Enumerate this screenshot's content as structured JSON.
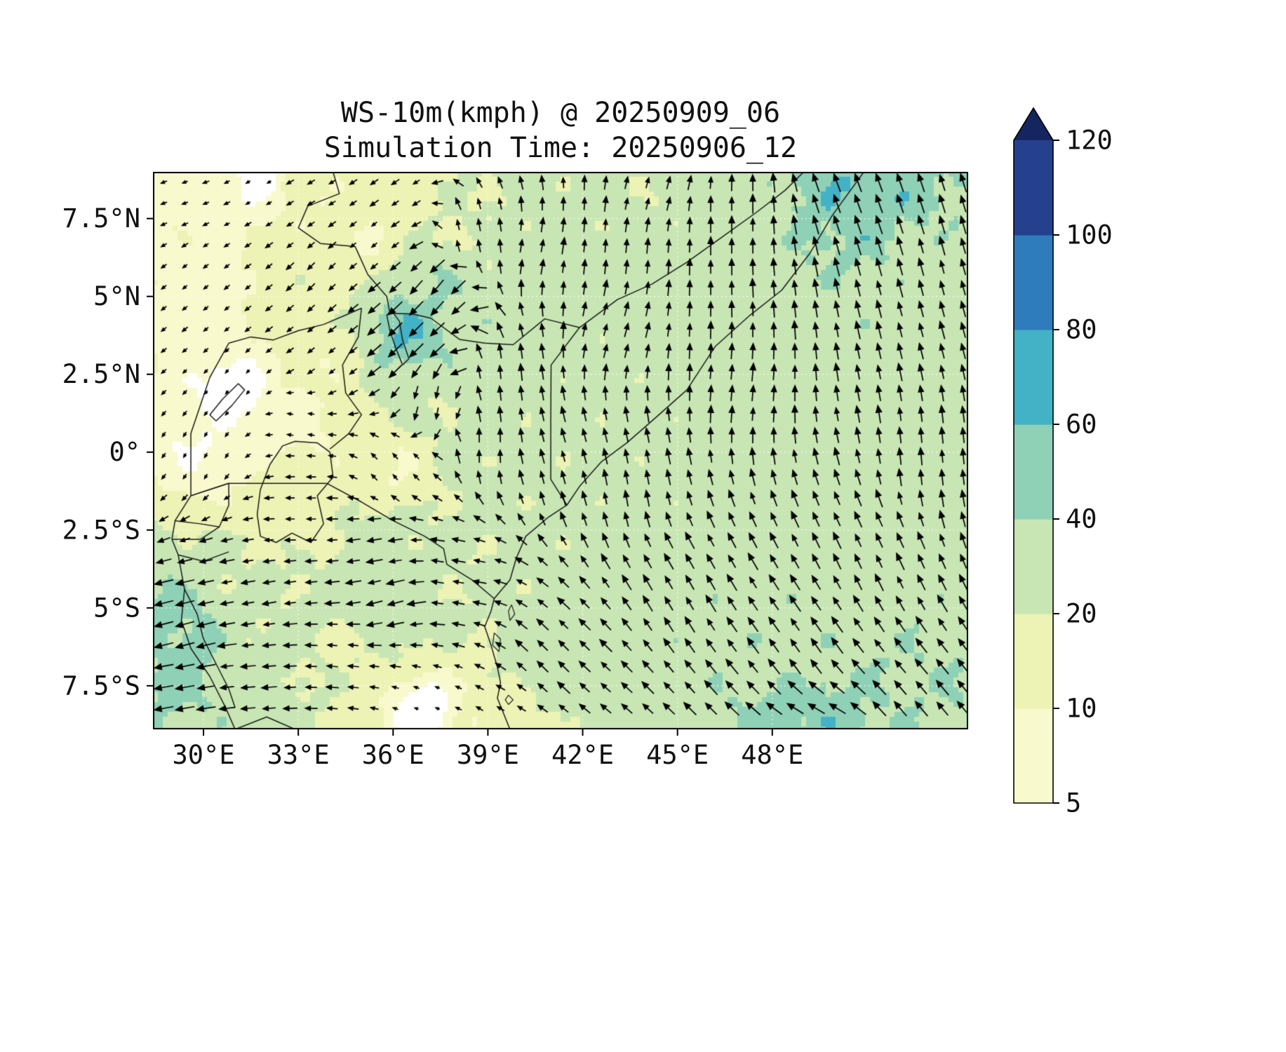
{
  "figure": {
    "title_line1": "WS-10m(kmph) @ 20250909_06",
    "title_line2": "Simulation Time: 20250906_12"
  },
  "chart_data": {
    "type": "heatmap",
    "subtype": "wind_speed_map_with_quiver",
    "title": "WS-10m(kmph) @ 20250909_06",
    "subtitle": "Simulation Time: 20250906_12",
    "variable": "10 m wind speed (kmph) shaded, with wind direction arrows",
    "grid": true,
    "extent": {
      "lon_min": 28.4,
      "lon_max": 54.2,
      "lat_min": -8.9,
      "lat_max": 9.0
    },
    "x_ticks": [
      {
        "label": "30°E",
        "lon": 30
      },
      {
        "label": "33°E",
        "lon": 33
      },
      {
        "label": "36°E",
        "lon": 36
      },
      {
        "label": "39°E",
        "lon": 39
      },
      {
        "label": "42°E",
        "lon": 42
      },
      {
        "label": "45°E",
        "lon": 45
      },
      {
        "label": "48°E",
        "lon": 48
      }
    ],
    "y_ticks": [
      {
        "label": "7.5°N",
        "lat": 7.5
      },
      {
        "label": "5°N",
        "lat": 5
      },
      {
        "label": "2.5°N",
        "lat": 2.5
      },
      {
        "label": "0°",
        "lat": 0
      },
      {
        "label": "2.5°S",
        "lat": -2.5
      },
      {
        "label": "5°S",
        "lat": -5
      },
      {
        "label": "7.5°S",
        "lat": -7.5
      }
    ],
    "colorbar": {
      "orientation": "vertical",
      "position": "right",
      "boundary_labels": [
        "5",
        "10",
        "20",
        "40",
        "60",
        "80",
        "100",
        "120"
      ],
      "thresholds": [
        5,
        10,
        20,
        40,
        60,
        80,
        100,
        120
      ],
      "under_color": "#ffffff",
      "band_colors": [
        "#f9f9ce",
        "#edf3b5",
        "#c8e6b4",
        "#8fd1b6",
        "#44b2c6",
        "#2e7cbc",
        "#25418e"
      ],
      "over_color": "#152560"
    },
    "quiver": {
      "spacing_px": 30,
      "arrow_color": "#000000"
    },
    "wind_field": {
      "units": "kmph",
      "point_format": [
        "lon",
        "lat",
        "speed_kmph",
        "dir_deg_toward"
      ],
      "points": [
        [
          29.5,
          8.5,
          8,
          250
        ],
        [
          31.8,
          8.8,
          4,
          240
        ],
        [
          33.2,
          8.6,
          12,
          240
        ],
        [
          36.0,
          8.2,
          14,
          235
        ],
        [
          30.0,
          5.2,
          7,
          230
        ],
        [
          33.5,
          5.5,
          16,
          225
        ],
        [
          35.2,
          6.7,
          10,
          230
        ],
        [
          38.5,
          7.0,
          20,
          350
        ],
        [
          30.0,
          0.0,
          5,
          210
        ],
        [
          31.0,
          2.0,
          3,
          220
        ],
        [
          33.0,
          1.0,
          8,
          280
        ],
        [
          34.0,
          3.0,
          12,
          230
        ],
        [
          36.5,
          3.8,
          58,
          225
        ],
        [
          37.3,
          5.2,
          40,
          220
        ],
        [
          37.3,
          1.5,
          22,
          190
        ],
        [
          39.5,
          2.5,
          28,
          355
        ],
        [
          39.0,
          0.3,
          26,
          0
        ],
        [
          36.0,
          -0.5,
          10,
          320
        ],
        [
          40.5,
          6.5,
          26,
          10
        ],
        [
          43.0,
          4.0,
          25,
          15
        ],
        [
          46.5,
          7.5,
          30,
          0
        ],
        [
          44.5,
          8.8,
          22,
          15
        ],
        [
          50.5,
          8.6,
          55,
          340
        ],
        [
          53.5,
          5.0,
          30,
          345
        ],
        [
          47.0,
          2.0,
          30,
          5
        ],
        [
          53.0,
          0.0,
          30,
          355
        ],
        [
          43.5,
          -1.0,
          28,
          350
        ],
        [
          41.0,
          -0.5,
          25,
          345
        ],
        [
          45.0,
          -4.0,
          32,
          330
        ],
        [
          49.0,
          -6.0,
          33,
          325
        ],
        [
          51.0,
          -3.0,
          30,
          335
        ],
        [
          52.5,
          -8.5,
          38,
          320
        ],
        [
          49.5,
          -8.8,
          50,
          300
        ],
        [
          41.0,
          -6.5,
          28,
          315
        ],
        [
          38.0,
          -4.0,
          22,
          280
        ],
        [
          35.5,
          -3.0,
          26,
          260
        ],
        [
          35.8,
          -4.8,
          34,
          255
        ],
        [
          33.0,
          -2.0,
          15,
          270
        ],
        [
          31.5,
          -4.5,
          22,
          260
        ],
        [
          29.3,
          -5.8,
          48,
          255
        ],
        [
          28.8,
          -7.5,
          45,
          260
        ],
        [
          31.5,
          -7.0,
          25,
          265
        ],
        [
          34.5,
          -6.5,
          18,
          275
        ],
        [
          37.0,
          -8.3,
          3,
          290
        ],
        [
          39.0,
          -8.7,
          12,
          300
        ]
      ]
    },
    "map_layers": {
      "borders": [
        [
          [
            50.9,
            9.0
          ],
          [
            49.9,
            7.6
          ],
          [
            49.2,
            6.4
          ],
          [
            48.3,
            5.2
          ],
          [
            47.3,
            4.4
          ],
          [
            46.2,
            3.4
          ],
          [
            45.3,
            2.0
          ],
          [
            44.3,
            1.1
          ],
          [
            43.4,
            0.3
          ],
          [
            42.6,
            -0.3
          ],
          [
            41.9,
            -1.1
          ],
          [
            41.5,
            -1.7
          ],
          [
            40.9,
            -2.1
          ],
          [
            40.2,
            -2.7
          ],
          [
            39.9,
            -3.4
          ],
          [
            39.7,
            -4.1
          ],
          [
            39.2,
            -4.7
          ],
          [
            39.1,
            -5.1
          ],
          [
            38.9,
            -5.6
          ],
          [
            39.1,
            -6.2
          ],
          [
            39.3,
            -6.9
          ],
          [
            39.4,
            -7.4
          ],
          [
            39.3,
            -7.9
          ],
          [
            39.5,
            -8.4
          ],
          [
            39.7,
            -8.9
          ]
        ],
        [
          [
            41.9,
            4.0
          ],
          [
            43.1,
            4.9
          ],
          [
            44.2,
            5.4
          ],
          [
            45.3,
            6.1
          ],
          [
            46.4,
            6.9
          ],
          [
            47.5,
            7.7
          ],
          [
            48.4,
            8.4
          ],
          [
            49.0,
            9.0
          ]
        ],
        [
          [
            35.9,
            4.45
          ],
          [
            36.6,
            4.44
          ],
          [
            37.2,
            4.3
          ],
          [
            38.1,
            3.62
          ],
          [
            38.9,
            3.5
          ],
          [
            39.8,
            3.45
          ],
          [
            40.8,
            4.28
          ],
          [
            41.9,
            4.0
          ]
        ],
        [
          [
            41.9,
            4.0
          ],
          [
            41.0,
            2.8
          ],
          [
            40.99,
            1.0
          ],
          [
            40.99,
            -0.87
          ],
          [
            41.5,
            -1.7
          ]
        ],
        [
          [
            34.1,
            9.0
          ],
          [
            34.3,
            8.3
          ],
          [
            33.3,
            7.9
          ],
          [
            33.0,
            7.2
          ],
          [
            33.7,
            6.7
          ],
          [
            34.8,
            6.6
          ],
          [
            35.2,
            5.7
          ],
          [
            35.8,
            5.0
          ],
          [
            35.9,
            4.45
          ]
        ],
        [
          [
            30.8,
            3.5
          ],
          [
            31.5,
            3.7
          ],
          [
            32.2,
            3.6
          ],
          [
            33.0,
            3.9
          ],
          [
            33.8,
            4.1
          ],
          [
            34.5,
            4.4
          ],
          [
            35.0,
            4.62
          ]
        ],
        [
          [
            35.0,
            4.62
          ],
          [
            34.9,
            3.7
          ],
          [
            34.4,
            2.8
          ],
          [
            34.5,
            1.9
          ],
          [
            35.0,
            1.2
          ],
          [
            34.6,
            0.6
          ],
          [
            34.0,
            0.1
          ]
        ],
        [
          [
            30.8,
            3.5
          ],
          [
            30.2,
            2.4
          ],
          [
            29.9,
            1.5
          ],
          [
            29.6,
            0.6
          ],
          [
            29.6,
            -0.5
          ],
          [
            29.6,
            -1.4
          ],
          [
            29.1,
            -2.2
          ],
          [
            29.0,
            -2.8
          ],
          [
            29.2,
            -3.3
          ],
          [
            29.4,
            -4.4
          ],
          [
            29.3,
            -5.4
          ],
          [
            29.6,
            -6.3
          ],
          [
            30.2,
            -7.2
          ],
          [
            30.7,
            -8.2
          ],
          [
            31.0,
            -8.9
          ]
        ],
        [
          [
            29.6,
            -1.4
          ],
          [
            30.5,
            -1.1
          ],
          [
            30.8,
            -1.0
          ],
          [
            30.8,
            -1.7
          ],
          [
            30.5,
            -2.4
          ],
          [
            29.9,
            -2.3
          ],
          [
            29.1,
            -2.2
          ]
        ],
        [
          [
            29.0,
            -2.8
          ],
          [
            29.9,
            -2.8
          ],
          [
            30.5,
            -2.4
          ]
        ],
        [
          [
            29.2,
            -3.3
          ],
          [
            30.0,
            -3.5
          ],
          [
            30.8,
            -3.2
          ]
        ],
        [
          [
            29.6,
            -1.4
          ],
          [
            30.8,
            -1.0
          ],
          [
            31.7,
            -1.0
          ],
          [
            32.8,
            -1.0
          ],
          [
            33.9,
            -1.0
          ]
        ],
        [
          [
            33.9,
            -1.0
          ],
          [
            35.0,
            -1.6
          ],
          [
            36.0,
            -2.2
          ],
          [
            37.0,
            -2.7
          ],
          [
            37.6,
            -3.1
          ],
          [
            37.7,
            -3.6
          ],
          [
            38.5,
            -4.1
          ],
          [
            39.2,
            -4.7
          ]
        ],
        [
          [
            29.4,
            -4.4
          ],
          [
            29.8,
            -5.2
          ],
          [
            30.0,
            -6.0
          ],
          [
            30.4,
            -6.8
          ],
          [
            30.8,
            -7.6
          ],
          [
            31.0,
            -8.2
          ]
        ],
        [
          [
            31.0,
            -8.9
          ],
          [
            32.0,
            -8.5
          ],
          [
            32.9,
            -8.9
          ]
        ]
      ],
      "lakes": [
        [
          [
            32.9,
            0.35
          ],
          [
            33.6,
            0.3
          ],
          [
            34.0,
            0.0
          ],
          [
            34.1,
            -0.8
          ],
          [
            33.6,
            -1.4
          ],
          [
            33.8,
            -2.3
          ],
          [
            33.4,
            -2.9
          ],
          [
            32.8,
            -2.6
          ],
          [
            32.3,
            -2.9
          ],
          [
            31.8,
            -2.7
          ],
          [
            31.7,
            -2.0
          ],
          [
            31.8,
            -1.2
          ],
          [
            32.1,
            -0.4
          ],
          [
            32.5,
            0.2
          ],
          [
            32.9,
            0.35
          ]
        ],
        [
          [
            35.95,
            4.55
          ],
          [
            36.2,
            4.2
          ],
          [
            36.3,
            3.6
          ],
          [
            36.5,
            3.0
          ],
          [
            36.3,
            2.8
          ],
          [
            36.1,
            3.3
          ],
          [
            35.9,
            3.9
          ],
          [
            35.8,
            4.4
          ],
          [
            35.95,
            4.55
          ]
        ],
        [
          [
            30.4,
            1.0
          ],
          [
            30.9,
            1.5
          ],
          [
            31.3,
            2.0
          ],
          [
            31.1,
            2.2
          ],
          [
            30.6,
            1.7
          ],
          [
            30.2,
            1.2
          ],
          [
            30.4,
            1.0
          ]
        ]
      ],
      "islands": [
        [
          [
            39.75,
            -4.9
          ],
          [
            39.85,
            -5.2
          ],
          [
            39.7,
            -5.4
          ],
          [
            39.65,
            -5.1
          ],
          [
            39.75,
            -4.9
          ]
        ],
        [
          [
            39.2,
            -5.8
          ],
          [
            39.4,
            -6.0
          ],
          [
            39.35,
            -6.4
          ],
          [
            39.15,
            -6.2
          ],
          [
            39.2,
            -5.8
          ]
        ],
        [
          [
            39.65,
            -7.8
          ],
          [
            39.8,
            -7.95
          ],
          [
            39.65,
            -8.1
          ],
          [
            39.55,
            -7.95
          ],
          [
            39.65,
            -7.8
          ]
        ]
      ]
    }
  }
}
